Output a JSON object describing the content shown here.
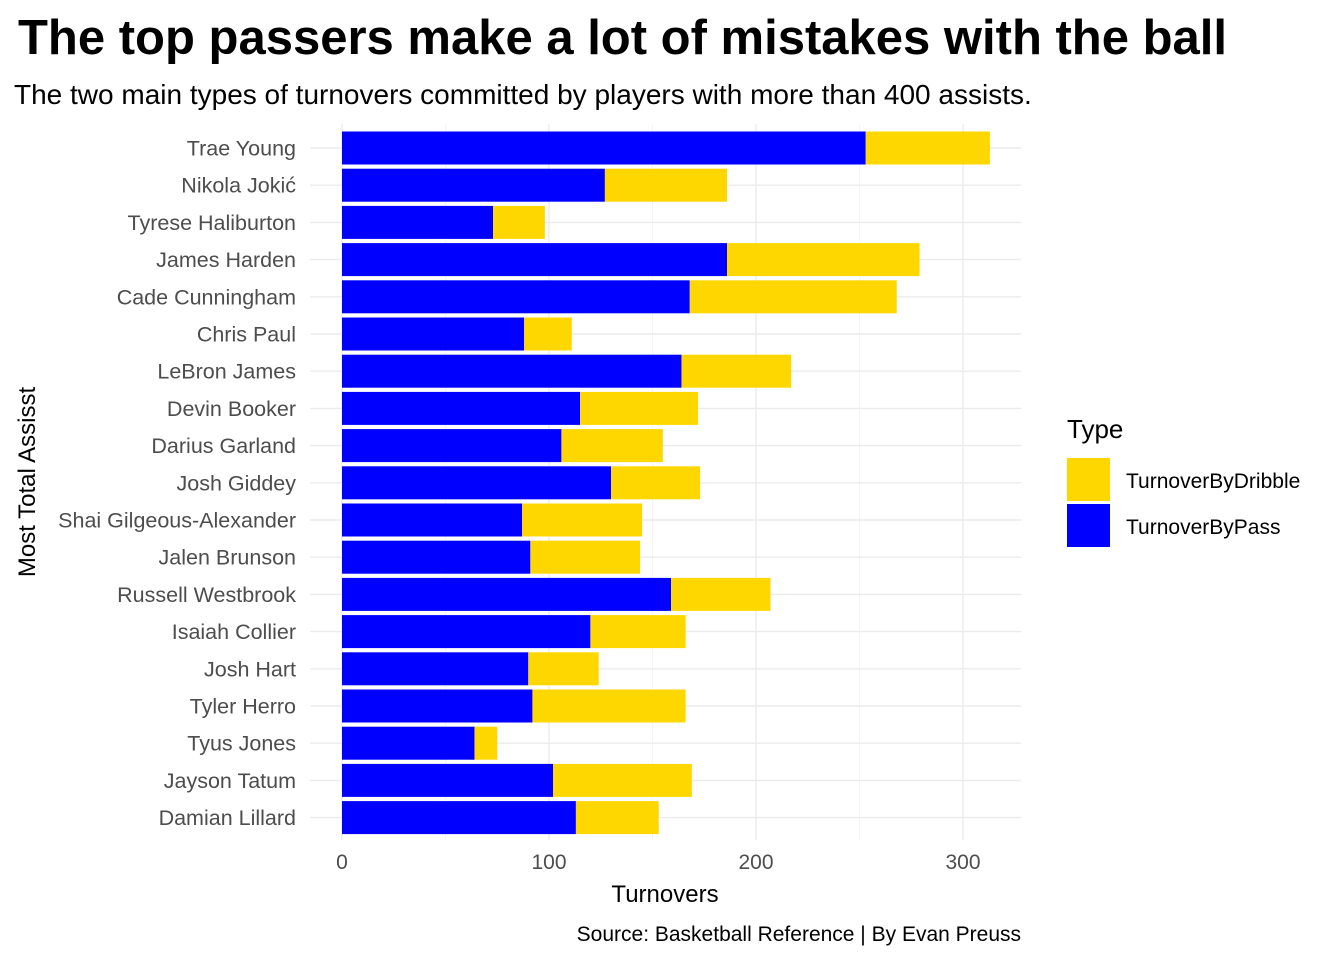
{
  "chart_data": {
    "type": "bar",
    "orientation": "horizontal",
    "stacked": true,
    "title": "The top passers make a lot of mistakes with the ball",
    "subtitle": "The two main types of turnovers committed by players with more than 400 assists.",
    "xlabel": "Turnovers",
    "ylabel": "Most Total Assisst",
    "caption": "Source: Basketball Reference | By Evan Preuss",
    "xlim": [
      0,
      330
    ],
    "xticks": [
      0,
      100,
      200,
      300
    ],
    "grid": true,
    "legend": {
      "title": "Type",
      "position": "right",
      "entries": [
        "TurnoverByDribble",
        "TurnoverByPass"
      ]
    },
    "categories": [
      "Trae Young",
      "Nikola Jokić",
      "Tyrese Haliburton",
      "James Harden",
      "Cade Cunningham",
      "Chris Paul",
      "LeBron James",
      "Devin Booker",
      "Darius Garland",
      "Josh Giddey",
      "Shai Gilgeous-Alexander",
      "Jalen Brunson",
      "Russell Westbrook",
      "Isaiah Collier",
      "Josh Hart",
      "Tyler Herro",
      "Tyus Jones",
      "Jayson Tatum",
      "Damian Lillard"
    ],
    "series": [
      {
        "name": "TurnoverByPass",
        "color": "#0000FF",
        "values": [
          253,
          127,
          73,
          186,
          168,
          88,
          164,
          115,
          106,
          130,
          87,
          91,
          159,
          120,
          90,
          92,
          64,
          102,
          113
        ]
      },
      {
        "name": "TurnoverByDribble",
        "color": "#FFD700",
        "values": [
          60,
          59,
          25,
          93,
          100,
          23,
          53,
          57,
          49,
          43,
          58,
          53,
          48,
          46,
          34,
          74,
          11,
          67,
          40
        ]
      }
    ]
  }
}
